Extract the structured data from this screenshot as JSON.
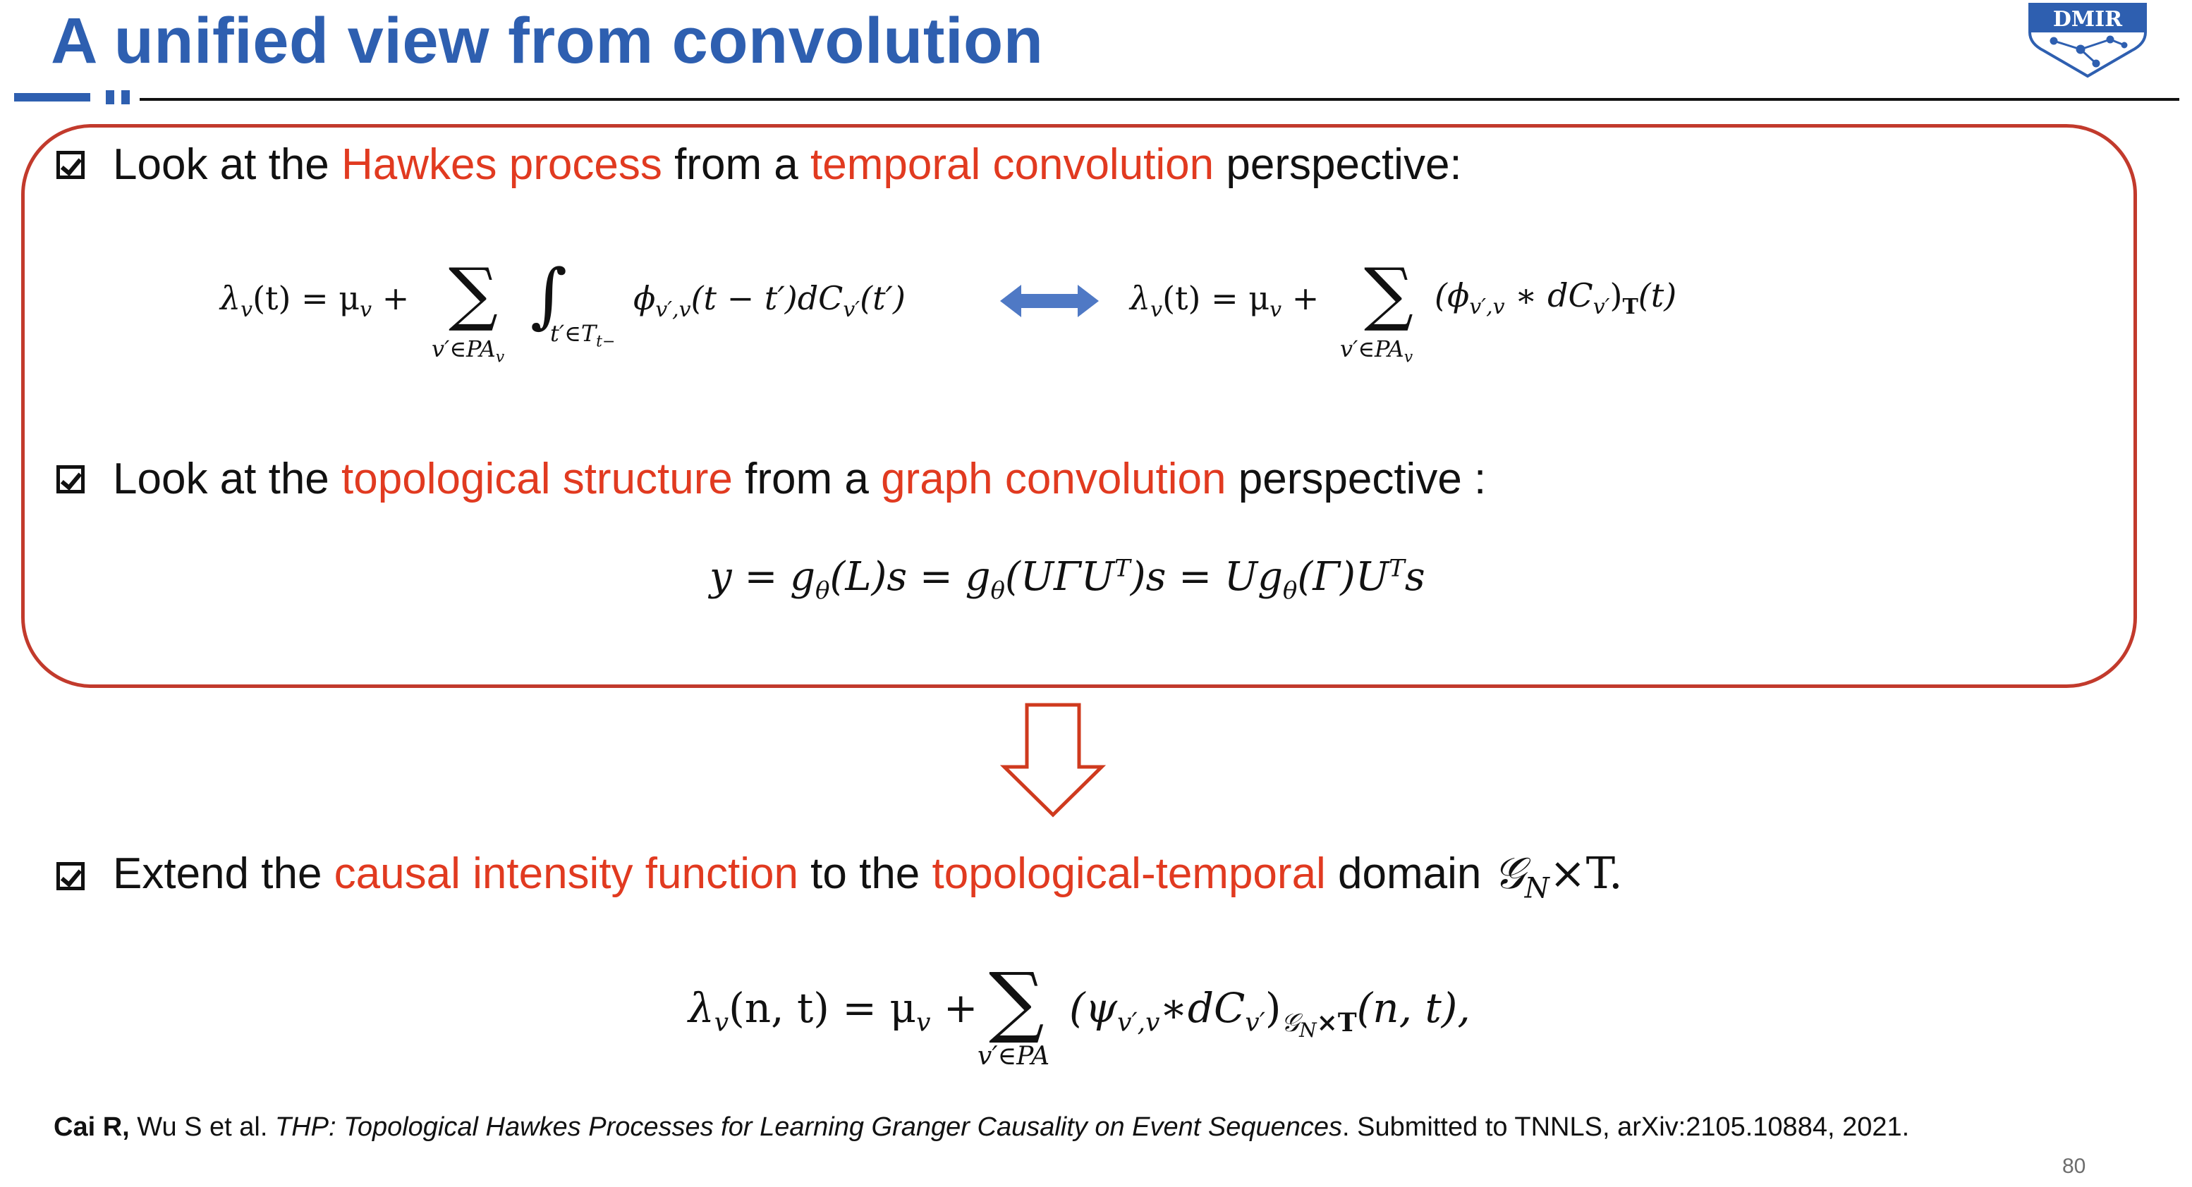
{
  "slide": {
    "title": "A unified view from convolution",
    "logo_text": "DMIR",
    "page_number": "80"
  },
  "bullets": [
    {
      "prefix": "Look at the ",
      "highlight1": "Hawkes process",
      "middle": " from a ",
      "highlight2": "temporal convolution",
      "suffix": " perspective:"
    },
    {
      "prefix": "Look at the ",
      "highlight1": "topological structure",
      "middle": " from a ",
      "highlight2": "graph convolution",
      "suffix": " perspective :"
    },
    {
      "prefix": "Extend the ",
      "highlight1": "causal intensity function",
      "middle": " to the ",
      "highlight2": "topological-temporal",
      "suffix": " domain ",
      "domain": "𝒢",
      "domain_sub": "N",
      "domain_tail": "×T."
    }
  ],
  "equations": {
    "hawkes_integral": {
      "lhs": "λ",
      "lhs_sub": "v",
      "lhs_arg": "(t) = μ",
      "mu_sub": "v",
      "plus": " + ",
      "sum_symbol": "∑",
      "sum_limit": "v′∈PA",
      "sum_limit_sub": "v",
      "integral_symbol": "∫",
      "integral_limit": "t′∈T",
      "integral_limit_sub": "t−",
      "phi": "ϕ",
      "phi_sub": "v′,v",
      "phi_arg": "(t − t′)dC",
      "c_sub": "v′",
      "c_arg": "(t′)"
    },
    "hawkes_convolution": {
      "lhs": "λ",
      "lhs_sub": "v",
      "lhs_arg": "(t) = μ",
      "mu_sub": "v",
      "plus": " + ",
      "sum_symbol": "∑",
      "sum_limit": "v′∈PA",
      "sum_limit_sub": "v",
      "body_open": "(ϕ",
      "phi_sub": "v′,v",
      "body_mid": " ∗ dC",
      "c_sub": "v′",
      "body_close": ")",
      "close_sub": "T",
      "tail": "(t)"
    },
    "graph_convolution": {
      "text_a": "y = g",
      "theta1": "θ",
      "text_b": "(L)s = g",
      "theta2": "θ",
      "text_c": "(UΓU",
      "t1": "T",
      "text_d": ")s = Ug",
      "theta3": "θ",
      "text_e": "(Γ)U",
      "t2": "T",
      "text_f": "s"
    },
    "topo_temporal": {
      "lhs": "λ",
      "lhs_sub": "v",
      "lhs_arg": "(n, t) = μ",
      "mu_sub": "v",
      "plus": " + ",
      "sum_symbol": "∑",
      "sum_limit": "v′∈PA",
      "body_open": "(ψ",
      "psi_sub": "v′,v",
      "body_mid": "∗dC",
      "c_sub": "v′",
      "body_close": ")",
      "close_sub": "𝒢",
      "close_sub_sub": "N",
      "close_sub_tail": "×T",
      "tail": "(n, t),"
    }
  },
  "citation": {
    "authors_bold": "Cai R,",
    "authors_rest": " Wu S et al. ",
    "title_italic": "THP: Topological Hawkes Processes for Learning Granger Causality on Event Sequences",
    "venue": ". Submitted to TNNLS, arXiv:2105.10884, 2021."
  },
  "colors": {
    "title_blue": "#2e5fb0",
    "highlight_red": "#e13a20",
    "panel_border": "#c23a2c",
    "arrow_blue": "#4f79c5",
    "arrow_red": "#cf3a1e"
  }
}
